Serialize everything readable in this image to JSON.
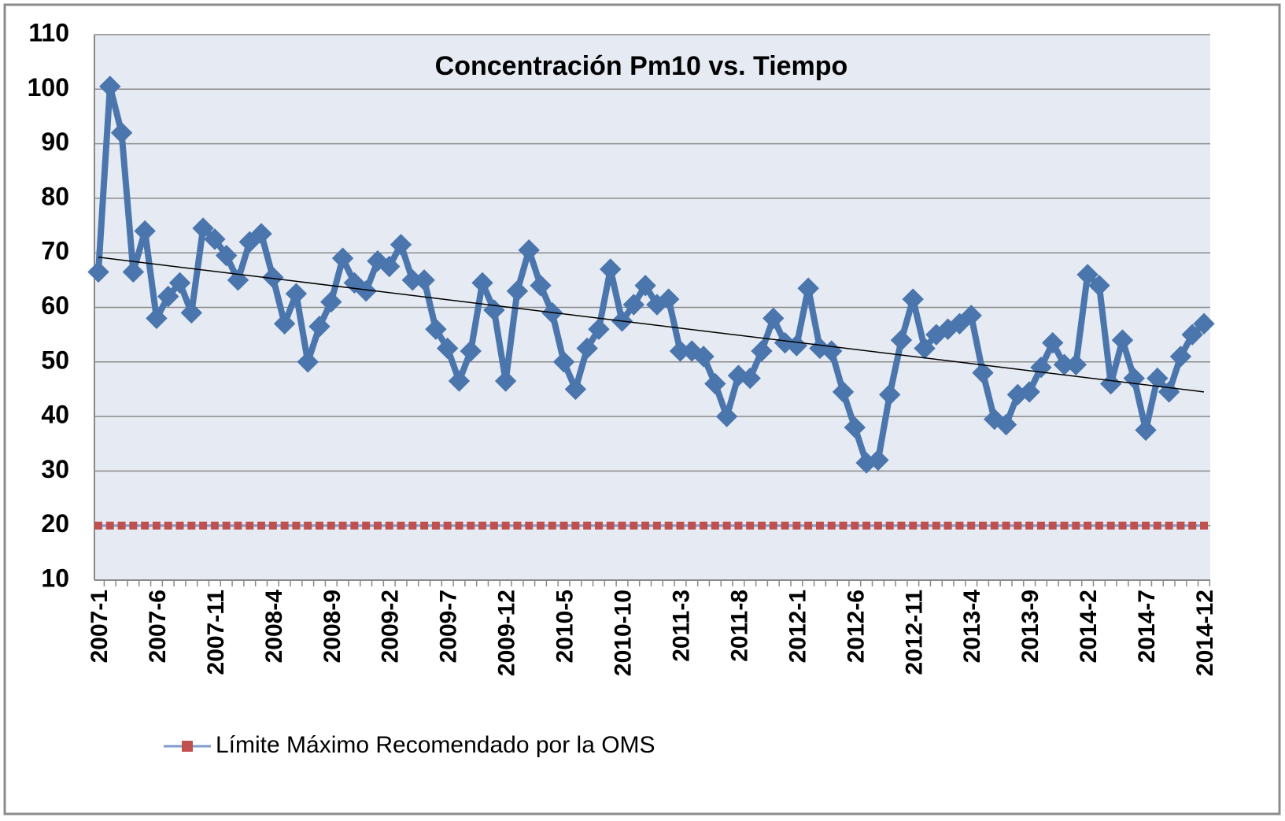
{
  "chart_data": {
    "type": "line",
    "title": "Concentración Pm10 vs. Tiempo",
    "categories": [
      "2007-1",
      null,
      null,
      null,
      null,
      "2007-6",
      null,
      null,
      null,
      null,
      "2007-11",
      null,
      null,
      null,
      null,
      "2008-4",
      null,
      null,
      null,
      null,
      "2008-9",
      null,
      null,
      null,
      null,
      "2009-2",
      null,
      null,
      null,
      null,
      "2009-7",
      null,
      null,
      null,
      null,
      "2009-12",
      null,
      null,
      null,
      null,
      "2010-5",
      null,
      null,
      null,
      null,
      "2010-10",
      null,
      null,
      null,
      null,
      "2011-3",
      null,
      null,
      null,
      null,
      "2011-8",
      null,
      null,
      null,
      null,
      "2012-1",
      null,
      null,
      null,
      null,
      "2012-6",
      null,
      null,
      null,
      null,
      "2012-11",
      null,
      null,
      null,
      null,
      "2013-4",
      null,
      null,
      null,
      null,
      "2013-9",
      null,
      null,
      null,
      null,
      "2014-2",
      null,
      null,
      null,
      null,
      "2014-7",
      null,
      null,
      null,
      null,
      "2014-12"
    ],
    "series": [
      {
        "color": "#4a76ad",
        "marker": "diamond",
        "values": [
          66.5,
          100.5,
          92,
          66.5,
          74,
          58,
          62,
          64.5,
          59,
          74.5,
          72.5,
          69.5,
          65,
          72,
          73.5,
          65.5,
          57,
          62.5,
          50,
          56.5,
          61,
          69,
          64.5,
          63,
          68.5,
          67.5,
          71.5,
          65,
          65,
          56,
          52.5,
          46.5,
          52,
          64.5,
          59.5,
          46.5,
          63,
          70.5,
          64,
          59,
          50,
          45,
          52.5,
          56,
          67,
          57.5,
          60.5,
          64,
          60.5,
          61.5,
          52,
          52,
          51,
          46,
          40,
          47.5,
          47,
          52,
          58,
          53.5,
          53,
          63.5,
          52.5,
          52,
          44.5,
          38,
          31.5,
          32,
          44,
          54,
          61.5,
          52.5,
          55,
          56,
          57,
          58.5,
          48,
          39.5,
          38.5,
          44,
          44.5,
          49,
          53.5,
          49.5,
          49.5,
          66,
          64,
          46,
          54,
          47,
          37.5,
          47,
          44.5,
          51,
          55,
          57
        ]
      },
      {
        "name": "Límite Máximo Recomendado por la OMS",
        "color": "#c0504d",
        "line_color": "#7e9ccf",
        "marker": "square",
        "values": [
          20,
          20,
          20,
          20,
          20,
          20,
          20,
          20,
          20,
          20,
          20,
          20,
          20,
          20,
          20,
          20,
          20,
          20,
          20,
          20,
          20,
          20,
          20,
          20,
          20,
          20,
          20,
          20,
          20,
          20,
          20,
          20,
          20,
          20,
          20,
          20,
          20,
          20,
          20,
          20,
          20,
          20,
          20,
          20,
          20,
          20,
          20,
          20,
          20,
          20,
          20,
          20,
          20,
          20,
          20,
          20,
          20,
          20,
          20,
          20,
          20,
          20,
          20,
          20,
          20,
          20,
          20,
          20,
          20,
          20,
          20,
          20,
          20,
          20,
          20,
          20,
          20,
          20,
          20,
          20,
          20,
          20,
          20,
          20,
          20,
          20,
          20,
          20,
          20,
          20,
          20,
          20,
          20,
          20,
          20,
          20
        ]
      }
    ],
    "trendline": [
      69.2,
      44.5
    ],
    "trendline_color": "#000000",
    "ylim": [
      10,
      110
    ],
    "yticks": [
      10,
      20,
      30,
      40,
      50,
      60,
      70,
      80,
      90,
      100,
      110
    ],
    "grid": true
  }
}
